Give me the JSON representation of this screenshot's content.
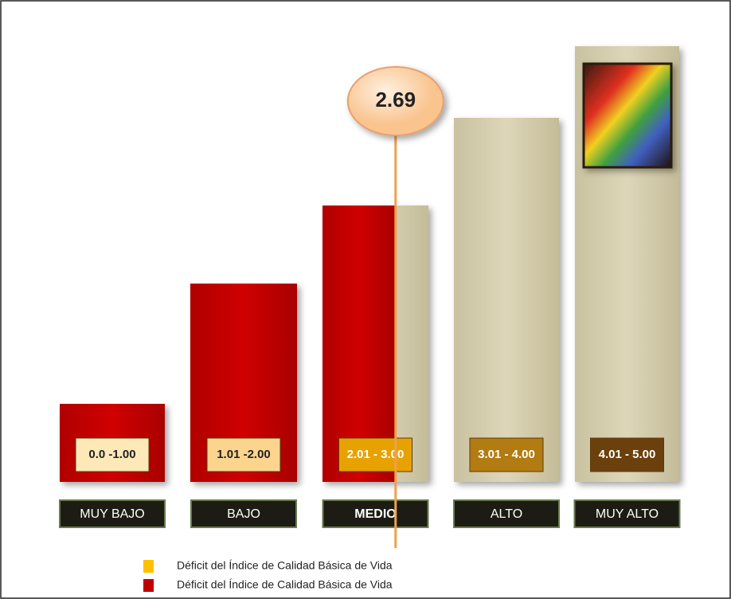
{
  "chart_data": {
    "type": "bar",
    "categories": [
      "MUY BAJO",
      "BAJO",
      "MEDIO",
      "ALTO",
      "MUY ALTO"
    ],
    "range_labels": [
      "0.0 -1.00",
      "1.01 -2.00",
      "2.01 - 3.00",
      "3.01 - 4.00",
      "4.01 - 5.00"
    ],
    "marker": 2.69,
    "legend": [
      {
        "name": "Déficit del Índice de Calidad Básica de Vida",
        "color": "#ffc000"
      },
      {
        "name": "Déficit del Índice de Calidad Básica de Vida",
        "color": "#c00000"
      }
    ]
  }
}
